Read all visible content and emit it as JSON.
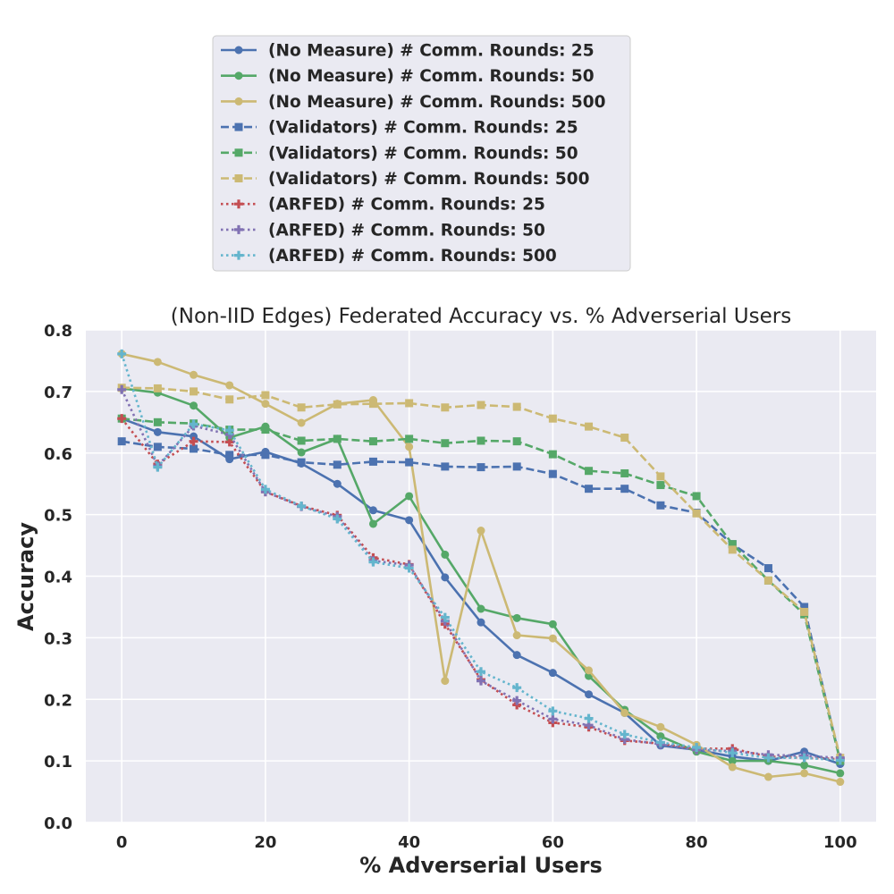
{
  "chart_data": {
    "type": "line",
    "title": "(Non-IID Edges) Federated Accuracy vs. % Adverserial Users",
    "xlabel": "% Adverserial Users",
    "ylabel": "Accuracy",
    "xlim": [
      -5,
      105
    ],
    "ylim": [
      0.0,
      0.8
    ],
    "x_ticks": [
      "0",
      "20",
      "40",
      "60",
      "80",
      "100"
    ],
    "y_ticks": [
      "0.0",
      "0.1",
      "0.2",
      "0.3",
      "0.4",
      "0.5",
      "0.6",
      "0.7",
      "0.8"
    ],
    "grid": true,
    "legend_position": "above plot",
    "x": [
      0,
      5,
      10,
      15,
      20,
      25,
      30,
      35,
      40,
      45,
      50,
      55,
      60,
      65,
      70,
      75,
      80,
      85,
      90,
      95,
      100
    ],
    "series": [
      {
        "name": "(No Measure) # Comm. Rounds: 25",
        "color": "#4c72b0",
        "dash": "solid",
        "marker": "circle",
        "values": [
          0.656,
          0.634,
          0.627,
          0.59,
          0.602,
          0.583,
          0.55,
          0.507,
          0.491,
          0.398,
          0.325,
          0.272,
          0.243,
          0.208,
          0.178,
          0.125,
          0.118,
          0.107,
          0.1,
          0.115,
          0.095
        ]
      },
      {
        "name": "(No Measure) # Comm. Rounds: 50",
        "color": "#55a868",
        "dash": "solid",
        "marker": "circle",
        "values": [
          0.705,
          0.698,
          0.677,
          0.625,
          0.643,
          0.601,
          0.623,
          0.485,
          0.53,
          0.435,
          0.347,
          0.332,
          0.322,
          0.238,
          0.183,
          0.14,
          0.115,
          0.1,
          0.1,
          0.093,
          0.08
        ]
      },
      {
        "name": "(No Measure) # Comm. Rounds: 500",
        "color": "#ccb974",
        "dash": "solid",
        "marker": "circle",
        "values": [
          0.761,
          0.748,
          0.727,
          0.71,
          0.68,
          0.649,
          0.68,
          0.686,
          0.61,
          0.23,
          0.474,
          0.304,
          0.299,
          0.247,
          0.178,
          0.155,
          0.126,
          0.09,
          0.074,
          0.08,
          0.066
        ]
      },
      {
        "name": "(Validators) # Comm. Rounds: 25",
        "color": "#4c72b0",
        "dash": "dashed",
        "marker": "square",
        "values": [
          0.619,
          0.61,
          0.607,
          0.597,
          0.597,
          0.585,
          0.581,
          0.586,
          0.585,
          0.578,
          0.577,
          0.578,
          0.566,
          0.542,
          0.542,
          0.515,
          0.503,
          0.452,
          0.413,
          0.35,
          0.1
        ]
      },
      {
        "name": "(Validators) # Comm. Rounds: 50",
        "color": "#55a868",
        "dash": "dashed",
        "marker": "square",
        "values": [
          0.656,
          0.65,
          0.648,
          0.638,
          0.638,
          0.62,
          0.623,
          0.619,
          0.623,
          0.616,
          0.62,
          0.619,
          0.598,
          0.571,
          0.567,
          0.548,
          0.53,
          0.452,
          0.393,
          0.338,
          0.1
        ]
      },
      {
        "name": "(Validators) # Comm. Rounds: 500",
        "color": "#ccb974",
        "dash": "dashed",
        "marker": "square",
        "values": [
          0.706,
          0.705,
          0.7,
          0.687,
          0.694,
          0.674,
          0.679,
          0.68,
          0.681,
          0.674,
          0.678,
          0.675,
          0.656,
          0.643,
          0.625,
          0.562,
          0.502,
          0.443,
          0.393,
          0.342,
          0.105
        ]
      },
      {
        "name": "(ARFED) # Comm. Rounds: 25",
        "color": "#c44e52",
        "dash": "dotted",
        "marker": "plus",
        "values": [
          0.656,
          0.582,
          0.619,
          0.618,
          0.537,
          0.514,
          0.499,
          0.43,
          0.419,
          0.322,
          0.232,
          0.191,
          0.162,
          0.155,
          0.133,
          0.128,
          0.12,
          0.12,
          0.107,
          0.105,
          0.103
        ]
      },
      {
        "name": "(ARFED) # Comm. Rounds: 50",
        "color": "#8172b3",
        "dash": "dotted",
        "marker": "plus",
        "values": [
          0.703,
          0.579,
          0.644,
          0.63,
          0.537,
          0.513,
          0.497,
          0.425,
          0.418,
          0.327,
          0.23,
          0.198,
          0.168,
          0.158,
          0.135,
          0.127,
          0.118,
          0.116,
          0.11,
          0.108,
          0.105
        ]
      },
      {
        "name": "(ARFED) # Comm. Rounds: 500",
        "color": "#64b5cd",
        "dash": "dotted",
        "marker": "plus",
        "values": [
          0.761,
          0.577,
          0.647,
          0.637,
          0.541,
          0.514,
          0.493,
          0.423,
          0.413,
          0.333,
          0.245,
          0.219,
          0.181,
          0.169,
          0.143,
          0.13,
          0.122,
          0.113,
          0.105,
          0.105,
          0.101
        ]
      }
    ]
  }
}
